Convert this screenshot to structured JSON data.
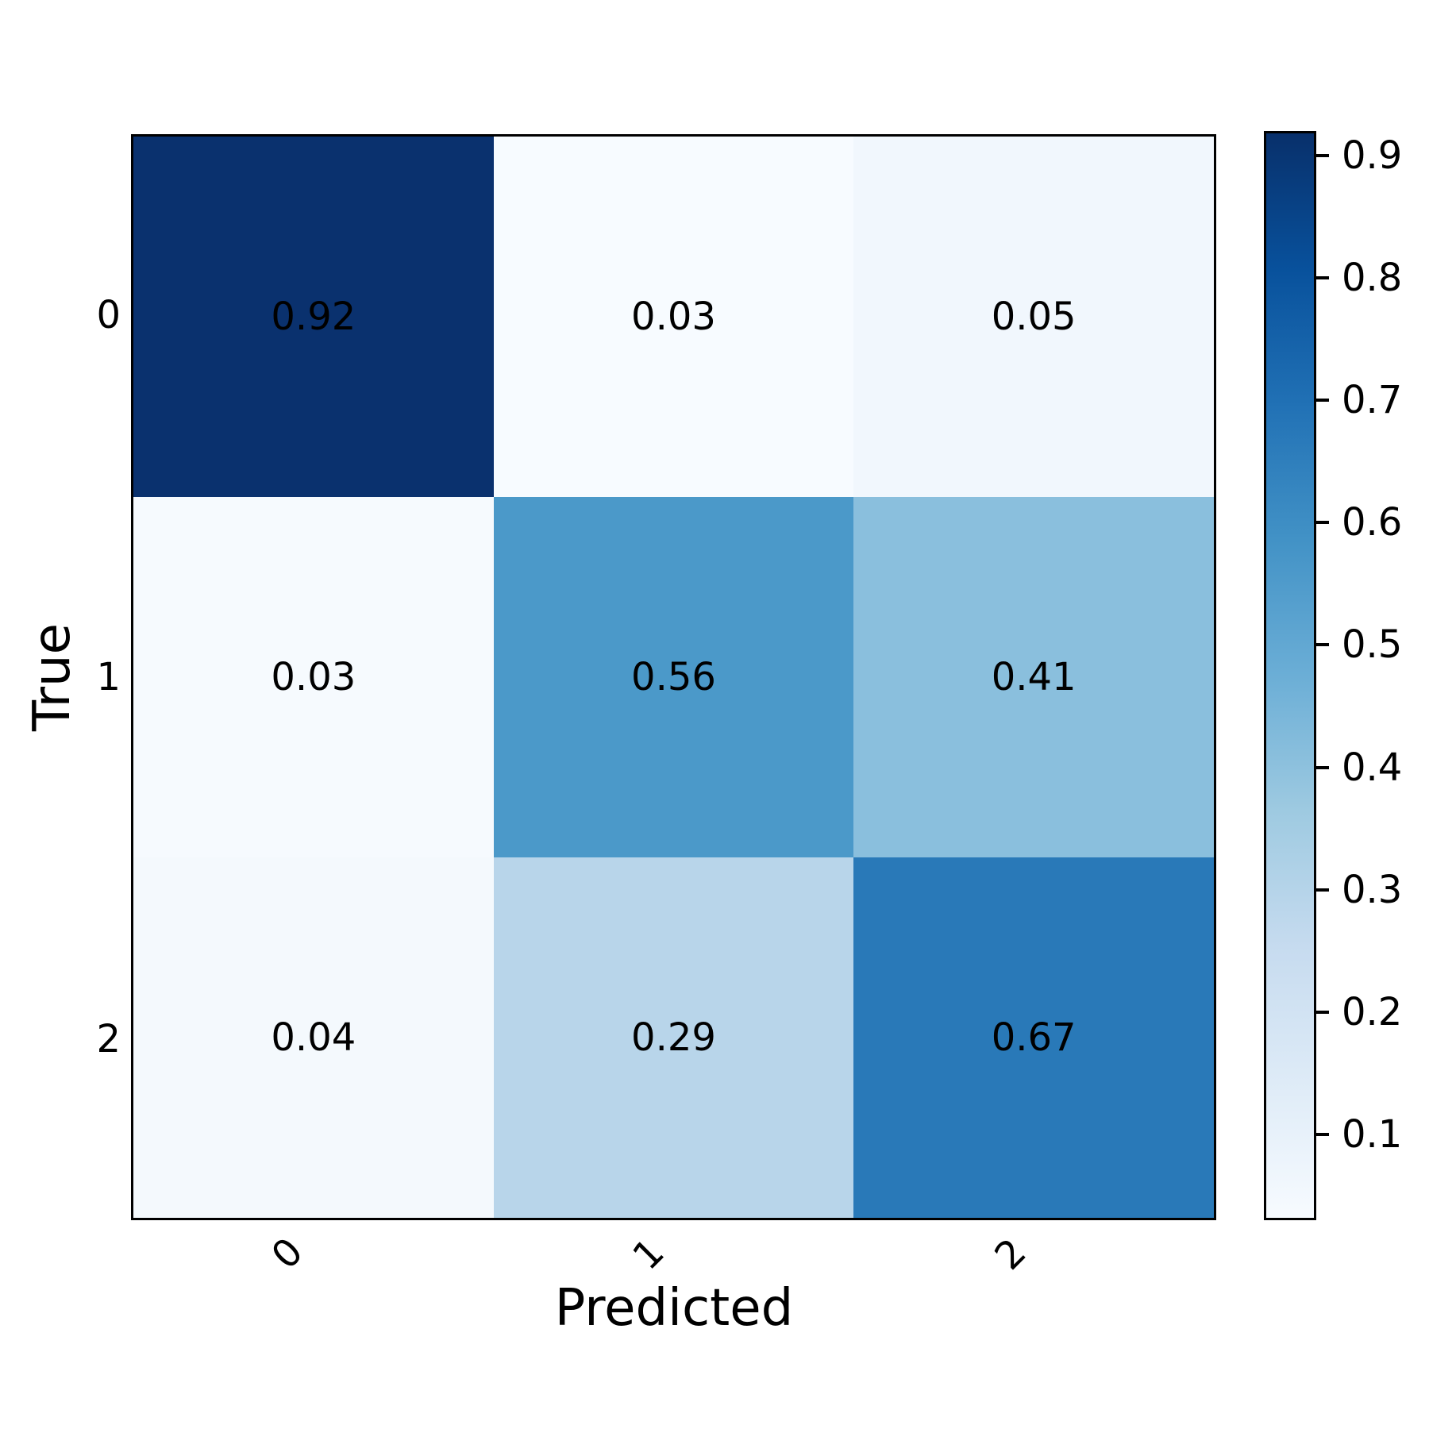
{
  "chart_data": {
    "type": "heatmap",
    "title": "",
    "xlabel": "Predicted",
    "ylabel": "True",
    "x_categories": [
      "0",
      "1",
      "2"
    ],
    "y_categories": [
      "0",
      "1",
      "2"
    ],
    "values": [
      [
        0.92,
        0.03,
        0.05
      ],
      [
        0.03,
        0.56,
        0.41
      ],
      [
        0.04,
        0.29,
        0.67
      ]
    ],
    "cells": [
      {
        "row": "0",
        "col": "0",
        "label": "0.92",
        "color": "#0a316e"
      },
      {
        "row": "0",
        "col": "1",
        "label": "0.03",
        "color": "#f7fbff"
      },
      {
        "row": "0",
        "col": "2",
        "label": "0.05",
        "color": "#f1f7fd"
      },
      {
        "row": "1",
        "col": "0",
        "label": "0.03",
        "color": "#f6fafe"
      },
      {
        "row": "1",
        "col": "1",
        "label": "0.56",
        "color": "#4b99c9"
      },
      {
        "row": "1",
        "col": "2",
        "label": "0.41",
        "color": "#8abfdd"
      },
      {
        "row": "2",
        "col": "0",
        "label": "0.04",
        "color": "#f4f9fd"
      },
      {
        "row": "2",
        "col": "1",
        "label": "0.29",
        "color": "#b8d5ea"
      },
      {
        "row": "2",
        "col": "2",
        "label": "0.67",
        "color": "#2979b8"
      }
    ],
    "colormap": "Blues",
    "annotation_text_color": "#000000",
    "grid": false,
    "colorbar": {
      "position": "right",
      "vmin": 0.03,
      "vmax": 0.92,
      "ticks": [
        0.9,
        0.8,
        0.7,
        0.6,
        0.5,
        0.4,
        0.3,
        0.2,
        0.1
      ],
      "tick_labels": [
        "0.9",
        "0.8",
        "0.7",
        "0.6",
        "0.5",
        "0.4",
        "0.3",
        "0.2",
        "0.1"
      ],
      "gradient_stops": [
        "#08306b",
        "#08519c",
        "#2171b5",
        "#4292c6",
        "#6baed6",
        "#9ecae1",
        "#c6dbef",
        "#deebf7",
        "#f7fbff"
      ]
    }
  }
}
